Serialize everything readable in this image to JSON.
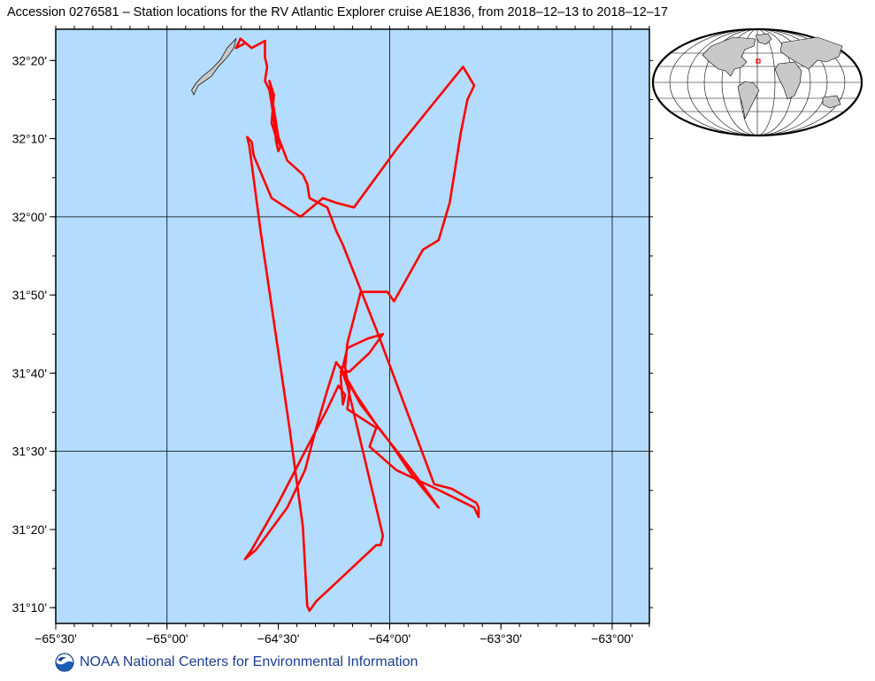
{
  "title": "Accession 0276581 – Station locations for the RV Atlantic Explorer cruise AE1836, from 2018–12–13 to 2018–12–17",
  "footer": {
    "text": "NOAA National Centers for Environmental Information",
    "logo_icon": "noaa-logo-icon"
  },
  "colors": {
    "ocean": "#b3dcff",
    "land": "#c8c8c8",
    "track": "#ff0000"
  },
  "map": {
    "lon_range": [
      -65.5,
      -62.833
    ],
    "lat_range": [
      31.133,
      32.4
    ],
    "lon_ticks": [
      {
        "value": -65.5,
        "label": "−65°30'"
      },
      {
        "value": -65.0,
        "label": "−65°00'"
      },
      {
        "value": -64.5,
        "label": "−64°30'"
      },
      {
        "value": -64.0,
        "label": "−64°00'"
      },
      {
        "value": -63.5,
        "label": "−63°30'"
      },
      {
        "value": -63.0,
        "label": "−63°00'"
      }
    ],
    "lat_ticks": [
      {
        "value": 31.1667,
        "label": "31°10'"
      },
      {
        "value": 31.3333,
        "label": "31°20'"
      },
      {
        "value": 31.5,
        "label": "31°30'"
      },
      {
        "value": 31.6667,
        "label": "31°40'"
      },
      {
        "value": 31.8333,
        "label": "31°50'"
      },
      {
        "value": 32.0,
        "label": "32°00'"
      },
      {
        "value": 32.1667,
        "label": "32°10'"
      },
      {
        "value": 32.3333,
        "label": "32°20'"
      }
    ],
    "gridlines_lon": [
      -65.0,
      -64.0,
      -63.0
    ],
    "gridlines_lat": [
      31.5,
      32.0
    ],
    "bermuda": [
      [
        -64.88,
        32.26
      ],
      [
        -64.86,
        32.28
      ],
      [
        -64.83,
        32.29
      ],
      [
        -64.8,
        32.3
      ],
      [
        -64.77,
        32.32
      ],
      [
        -64.73,
        32.34
      ],
      [
        -64.7,
        32.36
      ],
      [
        -64.69,
        32.38
      ],
      [
        -64.7,
        32.375
      ],
      [
        -64.73,
        32.36
      ],
      [
        -64.76,
        32.335
      ],
      [
        -64.8,
        32.315
      ],
      [
        -64.84,
        32.3
      ],
      [
        -64.87,
        32.285
      ],
      [
        -64.89,
        32.27
      ]
    ],
    "track": [
      [
        -64.65,
        32.37
      ],
      [
        -64.69,
        32.36
      ],
      [
        -64.67,
        32.38
      ],
      [
        -64.62,
        32.36
      ],
      [
        -64.58,
        32.37
      ],
      [
        -64.56,
        32.375
      ],
      [
        -64.56,
        32.34
      ],
      [
        -64.55,
        32.32
      ],
      [
        -64.56,
        32.29
      ],
      [
        -64.54,
        32.27
      ],
      [
        -64.52,
        32.21
      ],
      [
        -64.51,
        32.16
      ],
      [
        -64.5,
        32.14
      ],
      [
        -64.49,
        32.15
      ],
      [
        -64.51,
        32.17
      ],
      [
        -64.53,
        32.2
      ],
      [
        -64.52,
        32.26
      ],
      [
        -64.54,
        32.29
      ],
      [
        -64.5,
        32.17
      ],
      [
        -64.46,
        32.12
      ],
      [
        -64.39,
        32.09
      ],
      [
        -64.37,
        32.07
      ],
      [
        -64.36,
        32.04
      ],
      [
        -64.28,
        32.02
      ],
      [
        -64.24,
        31.97
      ],
      [
        -64.21,
        31.94
      ],
      [
        -64.06,
        31.76
      ],
      [
        -63.8,
        31.43
      ],
      [
        -63.72,
        31.42
      ],
      [
        -63.61,
        31.39
      ],
      [
        -63.6,
        31.38
      ],
      [
        -63.6,
        31.36
      ],
      [
        -63.62,
        31.38
      ],
      [
        -63.79,
        31.42
      ],
      [
        -63.97,
        31.46
      ],
      [
        -64.09,
        31.51
      ],
      [
        -64.06,
        31.55
      ],
      [
        -64.19,
        31.59
      ],
      [
        -64.18,
        31.63
      ],
      [
        -64.19,
        31.65
      ],
      [
        -64.2,
        31.68
      ],
      [
        -64.19,
        31.73
      ],
      [
        -64.13,
        31.84
      ],
      [
        -64.01,
        31.84
      ],
      [
        -63.98,
        31.82
      ],
      [
        -63.85,
        31.93
      ],
      [
        -63.78,
        31.95
      ],
      [
        -63.73,
        32.03
      ],
      [
        -63.7,
        32.12
      ],
      [
        -63.68,
        32.18
      ],
      [
        -63.65,
        32.25
      ],
      [
        -63.62,
        32.28
      ],
      [
        -63.67,
        32.32
      ],
      [
        -63.96,
        32.15
      ],
      [
        -64.16,
        32.02
      ],
      [
        -64.24,
        32.03
      ],
      [
        -64.3,
        32.04
      ],
      [
        -64.4,
        32.0
      ],
      [
        -64.53,
        32.04
      ],
      [
        -64.61,
        32.13
      ],
      [
        -64.62,
        32.16
      ],
      [
        -64.64,
        32.17
      ],
      [
        -64.63,
        32.15
      ],
      [
        -64.58,
        31.97
      ],
      [
        -64.45,
        31.55
      ],
      [
        -64.39,
        31.34
      ],
      [
        -64.37,
        31.17
      ],
      [
        -64.36,
        31.16
      ],
      [
        -64.33,
        31.18
      ],
      [
        -64.06,
        31.3
      ],
      [
        -64.04,
        31.3
      ],
      [
        -64.03,
        31.32
      ],
      [
        -64.12,
        31.5
      ],
      [
        -64.19,
        31.64
      ],
      [
        -64.22,
        31.68
      ],
      [
        -64.2,
        31.66
      ],
      [
        -64.13,
        31.6
      ],
      [
        -64.0,
        31.52
      ],
      [
        -63.9,
        31.45
      ],
      [
        -63.78,
        31.38
      ],
      [
        -63.87,
        31.44
      ],
      [
        -63.95,
        31.49
      ],
      [
        -64.05,
        31.55
      ],
      [
        -64.15,
        31.62
      ],
      [
        -64.21,
        31.67
      ],
      [
        -64.24,
        31.69
      ],
      [
        -64.28,
        31.63
      ],
      [
        -64.33,
        31.55
      ],
      [
        -64.38,
        31.46
      ],
      [
        -64.46,
        31.38
      ],
      [
        -64.6,
        31.29
      ],
      [
        -64.65,
        31.27
      ],
      [
        -64.62,
        31.29
      ],
      [
        -64.5,
        31.39
      ],
      [
        -64.38,
        31.5
      ],
      [
        -64.28,
        31.59
      ],
      [
        -64.23,
        31.64
      ],
      [
        -64.2,
        31.62
      ],
      [
        -64.21,
        31.6
      ],
      [
        -64.22,
        31.66
      ],
      [
        -64.19,
        31.72
      ],
      [
        -64.1,
        31.74
      ],
      [
        -64.03,
        31.75
      ],
      [
        -64.09,
        31.71
      ],
      [
        -64.18,
        31.67
      ],
      [
        -64.22,
        31.67
      ]
    ]
  }
}
